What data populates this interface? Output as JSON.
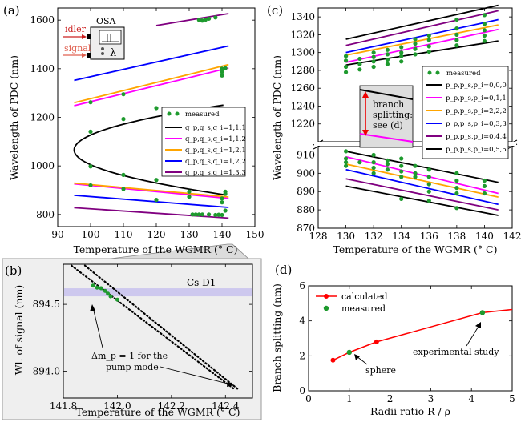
{
  "panels": [
    {
      "id": "a",
      "label": "(a)"
    },
    {
      "id": "b",
      "label": "(b)"
    },
    {
      "id": "c",
      "label": "(c)"
    },
    {
      "id": "d",
      "label": "(d)"
    }
  ],
  "inset_a": {
    "osa_label": "OSA",
    "idler_label": "idler",
    "signal_label": "signal",
    "lambda_symbol": "λ"
  },
  "chart_data": [
    {
      "id": "a",
      "type": "line",
      "xlabel": "Temperature of the WGMR (° C)",
      "ylabel": "Wavelength of PDC (nm)",
      "xlim": [
        90,
        150
      ],
      "ylim": [
        750,
        1650
      ],
      "xticks": [
        90,
        100,
        110,
        120,
        130,
        140,
        150
      ],
      "yticks": [
        800,
        1000,
        1200,
        1400,
        1600
      ],
      "legend_measured": "measured",
      "series": [
        {
          "name": "q_p,q_s,q_i=1,1,1",
          "color": "#000000",
          "type": "curve",
          "apex_x": 95,
          "center_y": 1066,
          "width": 21.5,
          "points": [
            [
              95,
              1066
            ],
            [
              100,
              1141
            ],
            [
              110,
              1200
            ],
            [
              120,
              1239
            ],
            [
              130,
              1272
            ],
            [
              140,
              1302
            ],
            [
              142,
              1309
            ]
          ]
        },
        {
          "name": "q_p,q_s,q_i=1,1,2",
          "color": "#ff00ff",
          "lines": [
            [
              [
                95,
                1248
              ],
              [
                142,
                1403
              ]
            ],
            [
              [
                95,
                926
              ],
              [
                142,
                866
              ]
            ]
          ]
        },
        {
          "name": "q_p,q_s,q_i=1,2,1",
          "color": "#ffa500",
          "lines": [
            [
              [
                95,
                1260
              ],
              [
                142,
                1417
              ]
            ],
            [
              [
                95,
                929
              ],
              [
                142,
                872
              ]
            ]
          ]
        },
        {
          "name": "q_p,q_s,q_i=1,2,2",
          "color": "#0000ff",
          "lines": [
            [
              [
                95,
                1352
              ],
              [
                142,
                1494
              ]
            ],
            [
              [
                95,
                879
              ],
              [
                142,
                829
              ]
            ]
          ]
        },
        {
          "name": "q_p,q_s,q_i=1,3,3",
          "color": "#800080",
          "lines": [
            [
              [
                120,
                1578
              ],
              [
                142,
                1627
              ]
            ],
            [
              [
                95,
                828
              ],
              [
                142,
                785
              ]
            ]
          ]
        }
      ],
      "measured": [
        [
          100,
          1262
        ],
        [
          110,
          1295
        ],
        [
          120,
          1238
        ],
        [
          100,
          1141
        ],
        [
          100,
          998
        ],
        [
          110,
          1193
        ],
        [
          110,
          963
        ],
        [
          120,
          942
        ],
        [
          100,
          920
        ],
        [
          110,
          905
        ],
        [
          120,
          860
        ],
        [
          130,
          894
        ],
        [
          130,
          873
        ],
        [
          140,
          1387
        ],
        [
          140,
          1372
        ],
        [
          140,
          1400
        ],
        [
          141,
          1402
        ],
        [
          141,
          894
        ],
        [
          141,
          885
        ],
        [
          140,
          866
        ],
        [
          140,
          850
        ],
        [
          141,
          816
        ],
        [
          133,
          1601
        ],
        [
          134,
          1598
        ],
        [
          135,
          1602
        ],
        [
          136,
          1606
        ],
        [
          138,
          1611
        ],
        [
          131,
          800
        ],
        [
          132,
          800
        ],
        [
          133,
          800
        ],
        [
          134,
          800
        ],
        [
          136,
          800
        ],
        [
          138,
          798
        ],
        [
          139,
          799
        ],
        [
          140,
          798
        ]
      ]
    },
    {
      "id": "b",
      "type": "scatter",
      "xlabel": "Temperature of the WGMR (° C)",
      "ylabel": "Wl. of signal (nm)",
      "xlim": [
        141.8,
        142.5
      ],
      "ylim": [
        893.8,
        894.8
      ],
      "xticks": [
        141.8,
        142.0,
        142.2,
        142.4
      ],
      "yticks": [
        894.0,
        894.5
      ],
      "band": {
        "label": "Cs D1",
        "y": 894.59
      },
      "annotation": {
        "line1": "Δm_p = 1 for the",
        "line2": "pump mode"
      },
      "dotted_lines": [
        [
          [
            141.83,
            894.79
          ],
          [
            142.43,
            893.87
          ]
        ],
        [
          [
            141.88,
            894.79
          ],
          [
            142.45,
            893.86
          ]
        ]
      ],
      "measured": [
        [
          141.91,
          894.64
        ],
        [
          141.925,
          894.625
        ],
        [
          141.94,
          894.62
        ],
        [
          141.955,
          894.6
        ],
        [
          141.965,
          894.58
        ],
        [
          141.975,
          894.56
        ],
        [
          142.0,
          894.535
        ]
      ]
    },
    {
      "id": "c",
      "type": "line",
      "xlabel": "Temperature of the WGMR (° C)",
      "ylabel": "Wavelength of PDC (nm)",
      "xlim": [
        128,
        142
      ],
      "ylim_lower": [
        870,
        915
      ],
      "ylim_upper": [
        1200,
        1350
      ],
      "xticks": [
        128,
        130,
        132,
        134,
        136,
        138,
        140,
        142
      ],
      "yticks_lower": [
        870,
        880,
        890,
        900,
        910
      ],
      "yticks_upper": [
        1220,
        1240,
        1260,
        1280,
        1300,
        1320,
        1340
      ],
      "legend_measured": "measured",
      "inset_text": {
        "line1": "branch",
        "line2": "splitting:",
        "line3": "see (d)"
      },
      "series": [
        {
          "name": "p_p,p_s,p_i=0,0,0",
          "color": "#000000",
          "upper": [
            [
              130,
              1286
            ],
            [
              141,
              1313
            ]
          ],
          "lower": [
            [
              130,
              893
            ],
            [
              141,
              877
            ]
          ]
        },
        {
          "name": "p_p,p_s,p_i=0,1,1",
          "color": "#ff00ff",
          "upper": [
            [
              130,
              1289
            ],
            [
              141,
              1326
            ]
          ],
          "lower": [
            [
              130,
              909
            ],
            [
              141,
              889
            ]
          ]
        },
        {
          "name": "p_p,p_s,p_i=2,2,2",
          "color": "#ffa500",
          "upper": [
            [
              130,
              1297
            ],
            [
              141,
              1331
            ]
          ],
          "lower": [
            [
              130,
              905
            ],
            [
              141,
              887
            ]
          ]
        },
        {
          "name": "p_p,p_s,p_i=0,3,3",
          "color": "#0000ff",
          "upper": [
            [
              130,
              1300
            ],
            [
              141,
              1337
            ]
          ],
          "lower": [
            [
              130,
              902
            ],
            [
              141,
              883
            ]
          ]
        },
        {
          "name": "p_p,p_s,p_i=0,4,4",
          "color": "#800080",
          "upper": [
            [
              130,
              1308
            ],
            [
              141,
              1347
            ]
          ],
          "lower": [
            [
              130,
              897
            ],
            [
              141,
              880
            ]
          ]
        },
        {
          "name": "p_p,p_s,p_i=0,5,5",
          "color": "#000000",
          "upper": [
            [
              130,
              1315
            ],
            [
              141,
              1353
            ]
          ],
          "lower": [
            [
              130,
              912
            ],
            [
              141,
              895
            ]
          ]
        }
      ],
      "measured": [
        [
          130,
          1278
        ],
        [
          130,
          1284
        ],
        [
          130,
          1291
        ],
        [
          130,
          1296
        ],
        [
          131,
          1281
        ],
        [
          131,
          1287
        ],
        [
          131,
          1293
        ],
        [
          132,
          1284
        ],
        [
          132,
          1290
        ],
        [
          132,
          1295
        ],
        [
          132,
          1300
        ],
        [
          133,
          1287
        ],
        [
          133,
          1292
        ],
        [
          133,
          1298
        ],
        [
          133,
          1303
        ],
        [
          134,
          1290
        ],
        [
          134,
          1296
        ],
        [
          134,
          1300
        ],
        [
          134,
          1306
        ],
        [
          135,
          1298
        ],
        [
          135,
          1304
        ],
        [
          135,
          1310
        ],
        [
          135,
          1315
        ],
        [
          136,
          1301
        ],
        [
          136,
          1307
        ],
        [
          136,
          1314
        ],
        [
          136,
          1319
        ],
        [
          138,
          1308
        ],
        [
          138,
          1314
        ],
        [
          138,
          1320
        ],
        [
          138,
          1327
        ],
        [
          138,
          1337
        ],
        [
          140,
          1313
        ],
        [
          140,
          1319
        ],
        [
          140,
          1325
        ],
        [
          140,
          1332
        ],
        [
          140,
          1342
        ],
        [
          130,
          912
        ],
        [
          130,
          908
        ],
        [
          130,
          906
        ],
        [
          130,
          904
        ],
        [
          131,
          906
        ],
        [
          132,
          910
        ],
        [
          132,
          906
        ],
        [
          132,
          903
        ],
        [
          132,
          900
        ],
        [
          133,
          907
        ],
        [
          133,
          905
        ],
        [
          133,
          902
        ],
        [
          134,
          908
        ],
        [
          134,
          904
        ],
        [
          134,
          901
        ],
        [
          134,
          898
        ],
        [
          134,
          886
        ],
        [
          135,
          904
        ],
        [
          135,
          900
        ],
        [
          135,
          898
        ],
        [
          136,
          902
        ],
        [
          136,
          898
        ],
        [
          136,
          894
        ],
        [
          136,
          890
        ],
        [
          136,
          885
        ],
        [
          138,
          900
        ],
        [
          138,
          896
        ],
        [
          138,
          892
        ],
        [
          138,
          889
        ],
        [
          138,
          881
        ],
        [
          140,
          896
        ],
        [
          140,
          893
        ],
        [
          140,
          889
        ]
      ]
    },
    {
      "id": "d",
      "type": "line",
      "xlabel": "Radii ratio R / ρ",
      "ylabel": "Branch splitting (nm)",
      "xlim": [
        0,
        5
      ],
      "ylim": [
        0,
        6
      ],
      "xticks": [
        0,
        1,
        2,
        3,
        4,
        5
      ],
      "yticks": [
        0,
        2,
        4,
        6
      ],
      "series": [
        {
          "name": "calculated",
          "color": "#ff0000",
          "x": [
            0.6,
            1.0,
            1.67,
            4.27,
            5.0
          ],
          "y": [
            1.75,
            2.2,
            2.8,
            4.47,
            4.65
          ]
        },
        {
          "name": "measured",
          "color": "#22a022",
          "x": [
            1.0,
            4.27
          ],
          "y": [
            2.2,
            4.47
          ]
        }
      ],
      "annotations": [
        {
          "text": "sphere"
        },
        {
          "text": "experimental study"
        }
      ]
    }
  ]
}
